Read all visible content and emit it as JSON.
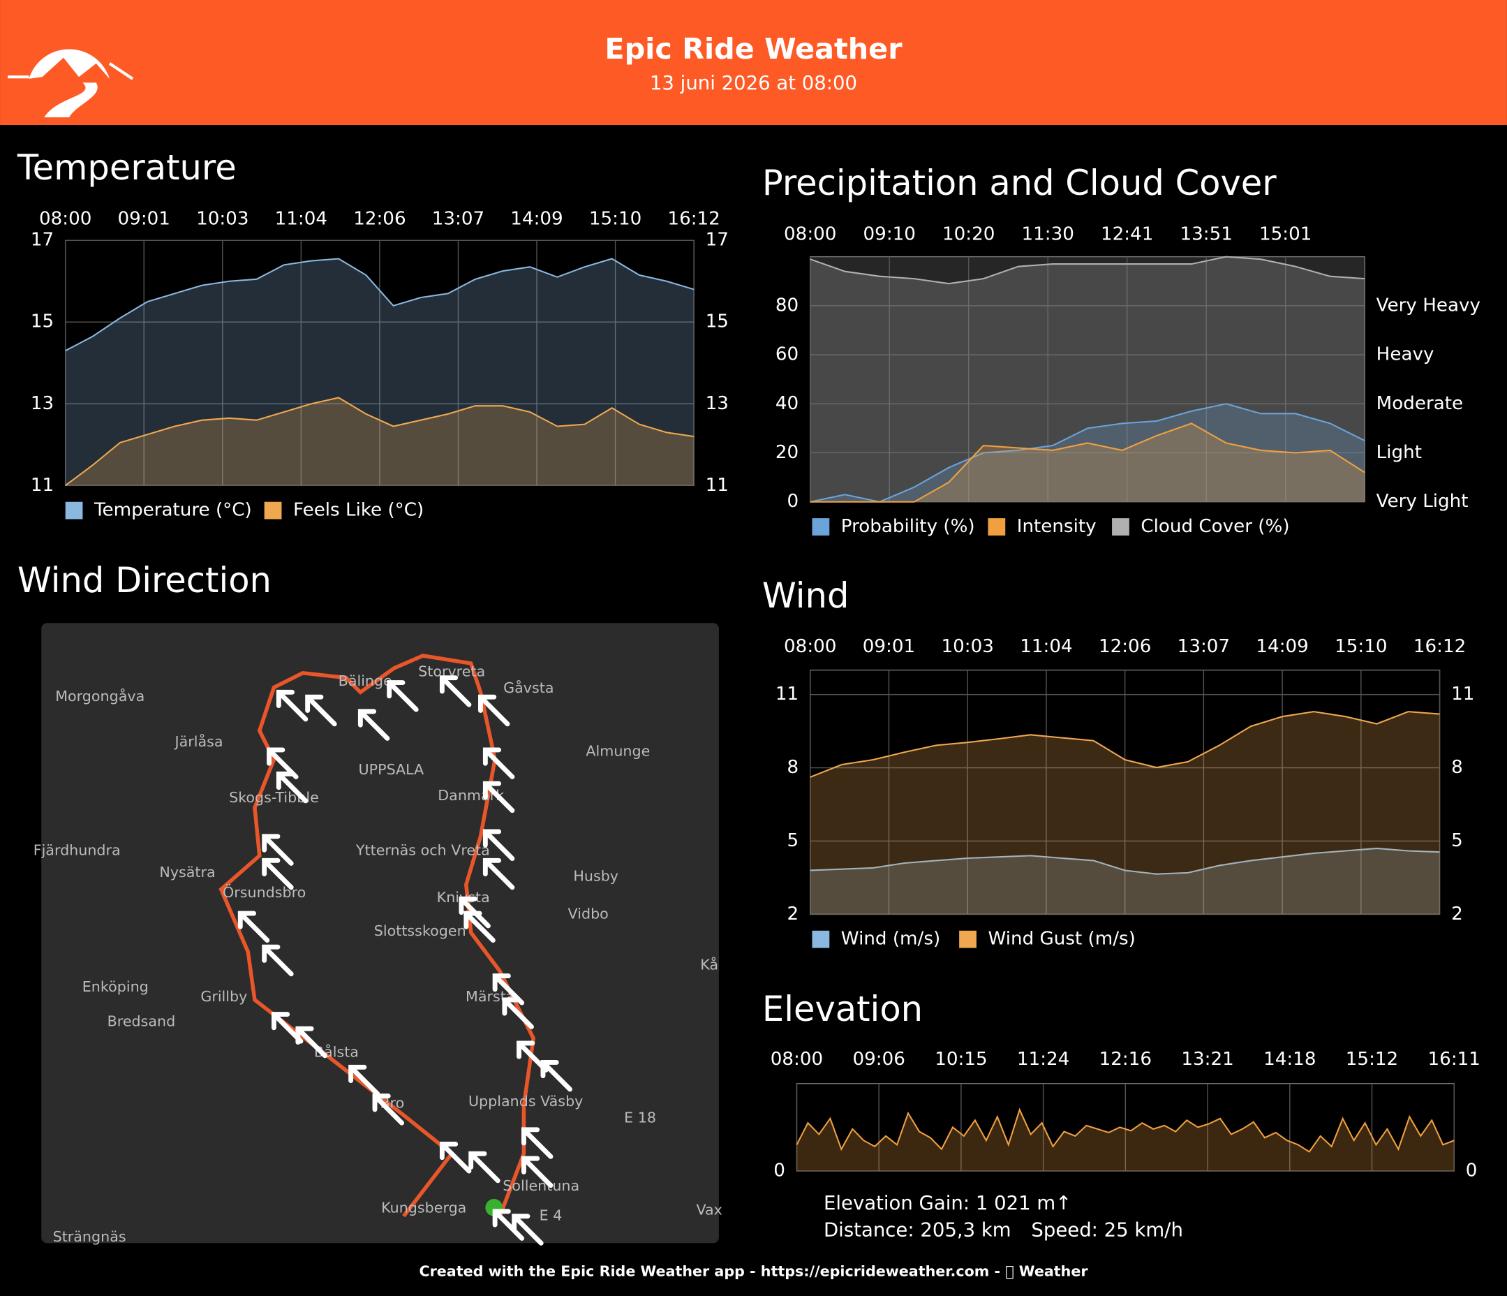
{
  "header": {
    "title": "Epic Ride Weather",
    "subtitle": "13 juni 2026 at 08:00"
  },
  "chart_data": [
    {
      "type": "area",
      "title": "Temperature",
      "xticks": [
        "08:00",
        "09:01",
        "10:03",
        "11:04",
        "12:06",
        "13:07",
        "14:09",
        "15:10",
        "16:12"
      ],
      "ylim": [
        11,
        17
      ],
      "yticks": [
        11,
        13,
        15,
        17
      ],
      "grid": true,
      "series": [
        {
          "name": "Temperature (°C)",
          "color": "#8ab8e0",
          "values": [
            14.3,
            14.65,
            15.1,
            15.5,
            15.7,
            15.9,
            16.0,
            16.05,
            16.4,
            16.5,
            16.55,
            16.15,
            15.4,
            15.6,
            15.7,
            16.05,
            16.25,
            16.35,
            16.1,
            16.35,
            16.55,
            16.15,
            16.0,
            15.8
          ]
        },
        {
          "name": "Feels Like (°C)",
          "color": "#f0a850",
          "values": [
            11.0,
            11.5,
            12.05,
            12.25,
            12.45,
            12.6,
            12.65,
            12.6,
            12.8,
            13.0,
            13.15,
            12.75,
            12.45,
            12.6,
            12.75,
            12.95,
            12.95,
            12.8,
            12.45,
            12.5,
            12.9,
            12.5,
            12.3,
            12.2
          ]
        }
      ]
    },
    {
      "type": "area",
      "title": "Precipitation and Cloud Cover",
      "xticks": [
        "08:00",
        "09:10",
        "10:20",
        "11:30",
        "12:41",
        "13:51",
        "15:01"
      ],
      "ylim": [
        0,
        100
      ],
      "yticks": [
        0,
        20,
        40,
        60,
        80
      ],
      "y2lim": [
        0,
        100
      ],
      "y2ticks": [
        {
          "value": 0,
          "label": "Very Light"
        },
        {
          "value": 20,
          "label": "Light"
        },
        {
          "value": 40,
          "label": "Moderate"
        },
        {
          "value": 60,
          "label": "Heavy"
        },
        {
          "value": 80,
          "label": "Very Heavy"
        }
      ],
      "grid": true,
      "series": [
        {
          "name": "Probability (%)",
          "color": "#6aa4d8",
          "values": [
            0,
            3,
            0,
            6,
            14,
            20,
            21,
            23,
            30,
            32,
            33,
            37,
            40,
            36,
            36,
            32,
            25
          ]
        },
        {
          "name": "Intensity",
          "color": "#f0a040",
          "values": [
            0,
            0,
            0,
            0,
            8,
            23,
            22,
            21,
            24,
            21,
            27,
            32,
            24,
            21,
            20,
            21,
            12
          ],
          "axis": "y2"
        },
        {
          "name": "Cloud Cover (%)",
          "color": "#b0b0b0",
          "values": [
            99,
            94,
            92,
            91,
            89,
            91,
            96,
            97,
            97,
            97,
            97,
            97,
            100,
            99,
            96,
            92,
            91
          ]
        }
      ]
    },
    {
      "type": "area",
      "title": "Wind",
      "xticks": [
        "08:00",
        "09:01",
        "10:03",
        "11:04",
        "12:06",
        "13:07",
        "14:09",
        "15:10",
        "16:12"
      ],
      "ylim": [
        2,
        12
      ],
      "yticks": [
        2,
        5,
        8,
        11
      ],
      "grid": true,
      "series": [
        {
          "name": "Wind (m/s)",
          "color": "#8ab8e0",
          "values": [
            3.8,
            3.85,
            3.9,
            4.1,
            4.2,
            4.3,
            4.35,
            4.4,
            4.3,
            4.2,
            3.8,
            3.65,
            3.7,
            4.0,
            4.2,
            4.35,
            4.5,
            4.6,
            4.7,
            4.6,
            4.55
          ]
        },
        {
          "name": "Wind Gust (m/s)",
          "color": "#f0a850",
          "values": [
            7.62,
            8.13,
            8.33,
            8.64,
            8.92,
            9.04,
            9.19,
            9.35,
            9.23,
            9.11,
            8.33,
            8.01,
            8.25,
            8.92,
            9.7,
            10.1,
            10.3,
            10.1,
            9.8,
            10.3,
            10.2
          ]
        }
      ]
    },
    {
      "type": "area",
      "title": "Elevation",
      "xticks": [
        "08:00",
        "09:06",
        "10:15",
        "11:24",
        "12:16",
        "13:21",
        "14:18",
        "15:12",
        "16:11"
      ],
      "ylim": [
        0,
        100
      ],
      "yticks": [
        0
      ],
      "grid": true,
      "color": "#f0a040",
      "values": [
        30,
        55,
        42,
        60,
        25,
        48,
        35,
        28,
        40,
        30,
        66,
        45,
        38,
        25,
        50,
        40,
        58,
        35,
        62,
        30,
        70,
        42,
        55,
        28,
        45,
        40,
        52,
        48,
        44,
        50,
        46,
        55,
        48,
        52,
        45,
        58,
        50,
        54,
        60,
        42,
        48,
        56,
        38,
        44,
        35,
        30,
        22,
        40,
        28,
        60,
        35,
        55,
        30,
        48,
        25,
        62,
        40,
        58,
        30,
        35
      ],
      "annotations": [
        "Elevation Gain: 1 021 m↑",
        "Distance: 205,3 km",
        "Speed: 25 km/h"
      ]
    }
  ],
  "map": {
    "title": "Wind Direction",
    "places": [
      "Morgongåva",
      "Järlåsa",
      "UPPSALA",
      "Skogs-Tibble",
      "Almunge",
      "Danmark",
      "Gåvsta",
      "Storvreta",
      "Bälinge",
      "Fjärdhundra",
      "Nysätra",
      "Ytternäs och Vreta",
      "Husby",
      "Vidbo",
      "Örsundsbro",
      "Knivsta",
      "Slottsskogen",
      "Enköping",
      "Grillby",
      "Bredsand",
      "Märsta",
      "Bålsta",
      "Bro",
      "Upplands Väsby",
      "Sollentuna",
      "Kungsberga",
      "Strängnäs",
      "Kå",
      "Vax",
      "E 18",
      "E 4"
    ]
  },
  "footer": "Created with the Epic Ride Weather app - https://epicrideweather.com -  Weather"
}
